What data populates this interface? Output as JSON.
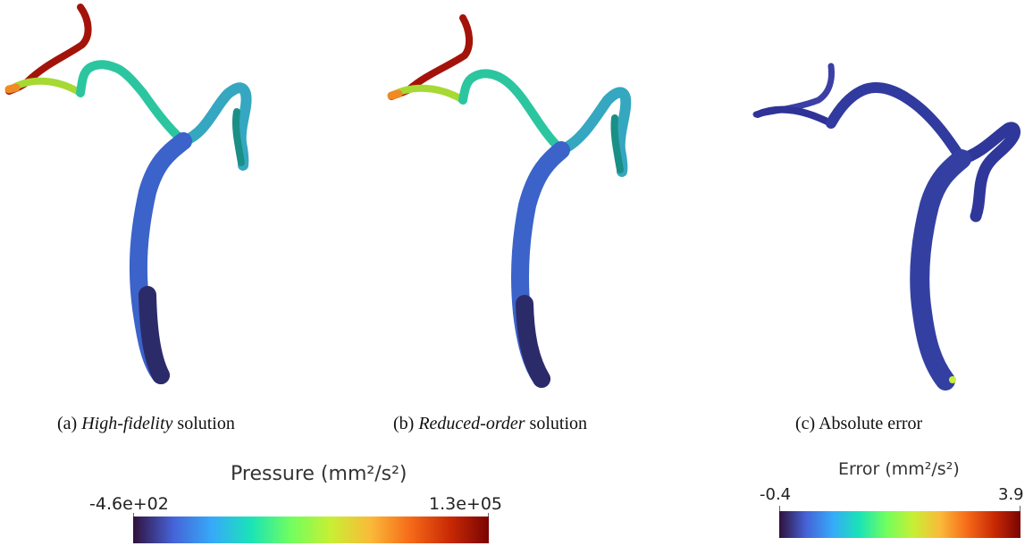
{
  "panels": [
    {
      "prefix": "(a) ",
      "italic": "High-fidelity",
      "suffix": " solution"
    },
    {
      "prefix": "(b) ",
      "italic": "Reduced-order",
      "suffix": " solution"
    },
    {
      "prefix": "(c) ",
      "italic": "",
      "suffix": "Absolute error"
    }
  ],
  "colorbars": {
    "pressure": {
      "title": "Pressure (mm²/s²)",
      "min_label": "-4.6e+02",
      "max_label": "1.3e+05"
    },
    "error": {
      "title": "Error (mm²/s²)",
      "min_label": "-0.4",
      "max_label": "3.9"
    }
  },
  "colormap": [
    "#30123b",
    "#4662d7",
    "#36aaf9",
    "#1ae4b6",
    "#72fe5e",
    "#c8ef34",
    "#faba39",
    "#f66b19",
    "#ca2a04",
    "#7a0403"
  ]
}
